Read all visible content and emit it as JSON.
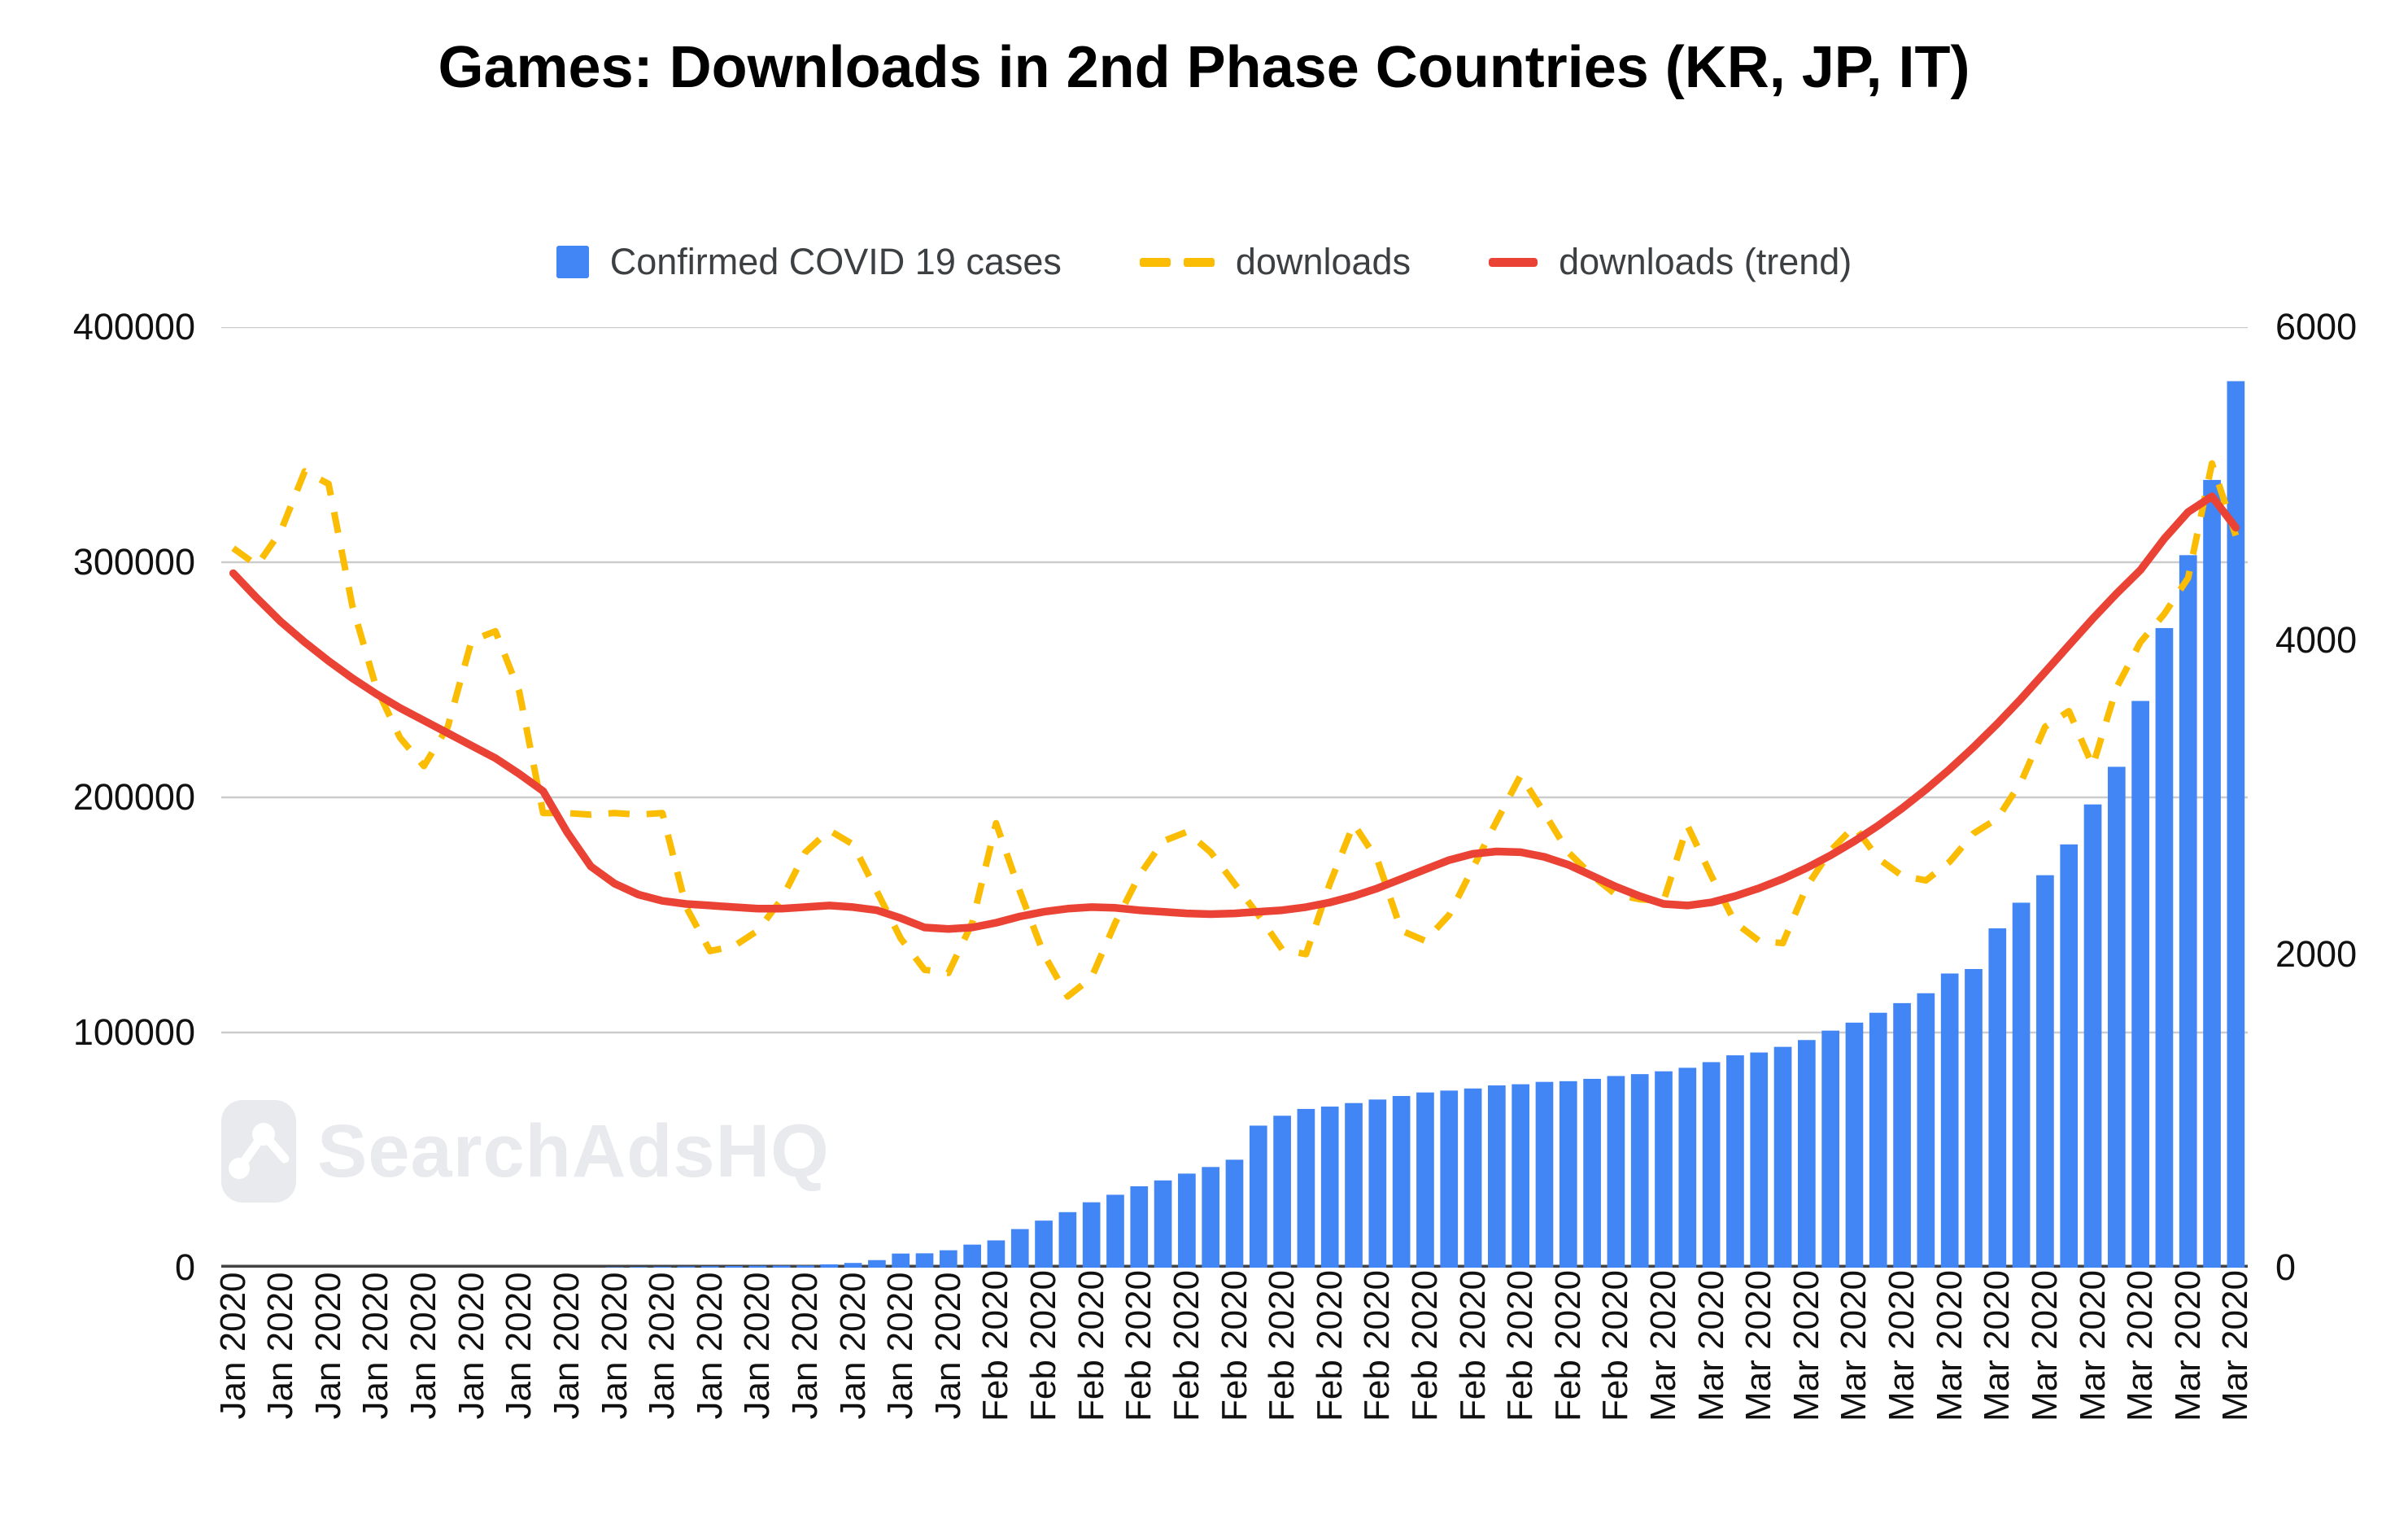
{
  "title": "Games: Downloads in 2nd Phase Countries (KR, JP, IT)",
  "legend": {
    "items": [
      {
        "label": "Confirmed COVID 19 cases",
        "swatch": "square",
        "color": "#4285F4"
      },
      {
        "label": "downloads",
        "swatch": "dashes",
        "color": "#FBBC04"
      },
      {
        "label": "downloads (trend)",
        "swatch": "line",
        "color": "#EA4335"
      }
    ]
  },
  "watermark": {
    "text": "SearchAdsHQ",
    "icon": "line-chart-logo-icon",
    "color": "#e8eaed"
  },
  "colors": {
    "bar": "#4285F4",
    "downloads": "#FBBC04",
    "trend": "#EA4335",
    "gridline": "#cccccc",
    "axis_line": "#424242",
    "axis_text": "#111111",
    "legend_text": "#3c4043",
    "background": "#ffffff"
  },
  "chart_data": {
    "type": "combo",
    "title": "Games: Downloads in 2nd Phase Countries (KR, JP, IT)",
    "n_points": 85,
    "grid": true,
    "legend_position": "top",
    "left_axis": {
      "min": 0,
      "max": 400000,
      "ticks": [
        400000,
        300000,
        200000,
        100000,
        0
      ]
    },
    "right_axis": {
      "min": 0,
      "max": 6000,
      "ticks": [
        6000,
        4000,
        2000,
        0
      ]
    },
    "x_axis": {
      "points_per_label": 2,
      "tick_labels": [
        "Jan 2020",
        "Jan 2020",
        "Jan 2020",
        "Jan 2020",
        "Jan 2020",
        "Jan 2020",
        "Jan 2020",
        "Jan 2020",
        "Jan 2020",
        "Jan 2020",
        "Jan 2020",
        "Jan 2020",
        "Jan 2020",
        "Jan 2020",
        "Jan 2020",
        "Jan 2020",
        "Feb 2020",
        "Feb 2020",
        "Feb 2020",
        "Feb 2020",
        "Feb 2020",
        "Feb 2020",
        "Feb 2020",
        "Feb 2020",
        "Feb 2020",
        "Feb 2020",
        "Feb 2020",
        "Feb 2020",
        "Feb 2020",
        "Feb 2020",
        "Mar 2020",
        "Mar 2020",
        "Mar 2020",
        "Mar 2020",
        "Mar 2020",
        "Mar 2020",
        "Mar 2020",
        "Mar 2020",
        "Mar 2020",
        "Mar 2020",
        "Mar 2020",
        "Mar 2020",
        "Mar 2020"
      ]
    },
    "series": [
      {
        "name": "Confirmed COVID 19 cases",
        "type": "bar",
        "axis": "left",
        "color": "#4285F4",
        "values": [
          0,
          0,
          0,
          0,
          0,
          0,
          0,
          0,
          0,
          0,
          0,
          0,
          0,
          0,
          0,
          0,
          200,
          300,
          400,
          500,
          600,
          700,
          800,
          850,
          900,
          1400,
          2000,
          3200,
          6000,
          6100,
          7400,
          9800,
          11600,
          16400,
          20000,
          23600,
          27800,
          31000,
          34600,
          37100,
          40000,
          42800,
          45900,
          60400,
          64600,
          67500,
          68500,
          70000,
          71500,
          73000,
          74500,
          75300,
          76200,
          77500,
          78000,
          79000,
          79300,
          80300,
          81500,
          82300,
          83500,
          85000,
          87400,
          90300,
          91500,
          93900,
          96800,
          100800,
          104200,
          108400,
          112500,
          116700,
          125100,
          127000,
          144300,
          155200,
          166900,
          180000,
          197000,
          213000,
          241000,
          272000,
          303000,
          335000,
          377000
        ]
      },
      {
        "name": "downloads",
        "type": "line-dashed",
        "axis": "right",
        "color": "#FBBC04",
        "values": [
          4590,
          4480,
          4700,
          5080,
          5000,
          4220,
          3700,
          3380,
          3200,
          3450,
          4000,
          4060,
          3675,
          2900,
          2900,
          2890,
          2900,
          2890,
          2900,
          2300,
          2020,
          2050,
          2150,
          2350,
          2650,
          2790,
          2700,
          2400,
          2100,
          1900,
          1880,
          2200,
          2835,
          2400,
          2000,
          1730,
          1850,
          2200,
          2500,
          2720,
          2780,
          2650,
          2450,
          2250,
          2030,
          2000,
          2450,
          2830,
          2600,
          2150,
          2085,
          2250,
          2550,
          2850,
          3140,
          2900,
          2650,
          2500,
          2380,
          2350,
          2340,
          2820,
          2500,
          2200,
          2085,
          2070,
          2430,
          2660,
          2815,
          2610,
          2500,
          2470,
          2590,
          2770,
          2865,
          3100,
          3450,
          3550,
          3200,
          3700,
          3990,
          4170,
          4400,
          5130,
          4670
        ]
      },
      {
        "name": "downloads (trend)",
        "type": "line",
        "axis": "right",
        "color": "#EA4335",
        "values": [
          4430,
          4270,
          4120,
          3990,
          3870,
          3760,
          3660,
          3570,
          3490,
          3410,
          3330,
          3250,
          3150,
          3040,
          2780,
          2560,
          2450,
          2380,
          2340,
          2320,
          2310,
          2300,
          2290,
          2290,
          2300,
          2310,
          2300,
          2280,
          2230,
          2170,
          2160,
          2170,
          2200,
          2240,
          2270,
          2290,
          2300,
          2295,
          2280,
          2270,
          2260,
          2255,
          2260,
          2270,
          2280,
          2300,
          2330,
          2370,
          2420,
          2480,
          2540,
          2600,
          2640,
          2655,
          2650,
          2620,
          2570,
          2500,
          2430,
          2370,
          2320,
          2310,
          2330,
          2370,
          2420,
          2480,
          2550,
          2630,
          2720,
          2820,
          2930,
          3050,
          3180,
          3320,
          3470,
          3630,
          3800,
          3970,
          4140,
          4300,
          4450,
          4650,
          4820,
          4920,
          4720
        ]
      }
    ]
  }
}
